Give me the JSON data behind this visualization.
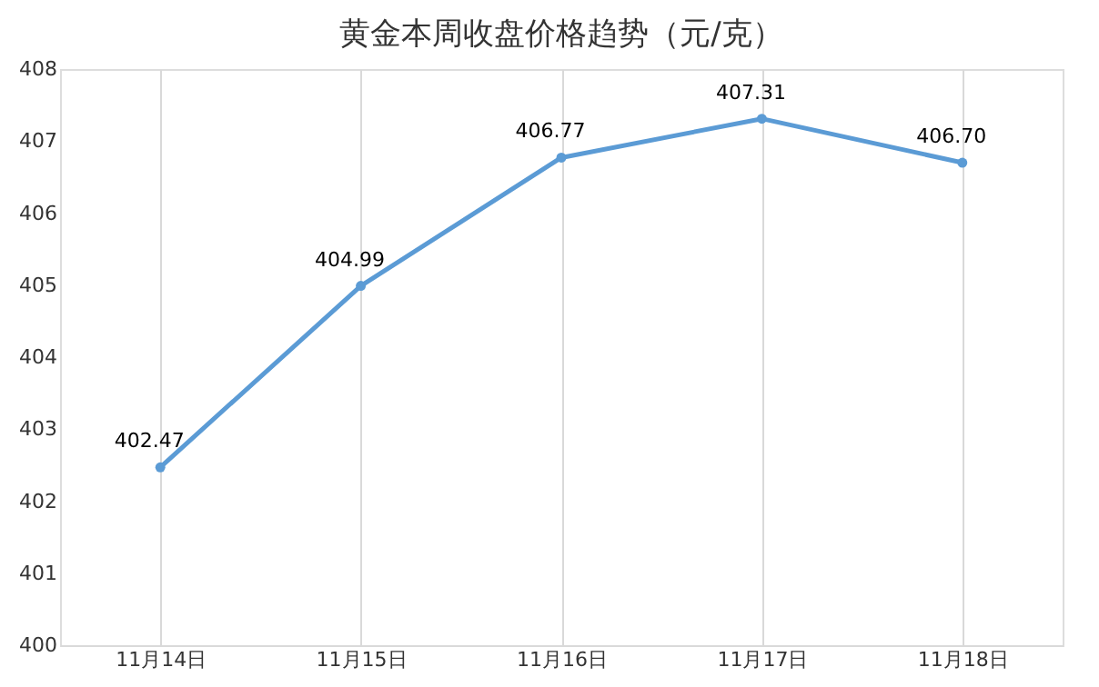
{
  "chart_data": {
    "type": "line",
    "title": "黄金本周收盘价格趋势（元/克）",
    "categories": [
      "11月14日",
      "11月15日",
      "11月16日",
      "11月17日",
      "11月18日"
    ],
    "series": [
      {
        "color": "#5b9bd5",
        "values": [
          402.47,
          404.99,
          406.77,
          407.31,
          406.7
        ]
      }
    ],
    "ylim": [
      400,
      408
    ],
    "yticks": [
      400,
      401,
      402,
      403,
      404,
      405,
      406,
      407,
      408
    ],
    "value_labels": [
      "402.47",
      "404.99",
      "406.77",
      "407.31",
      "406.70"
    ],
    "grid": "x",
    "marker": "circle"
  }
}
